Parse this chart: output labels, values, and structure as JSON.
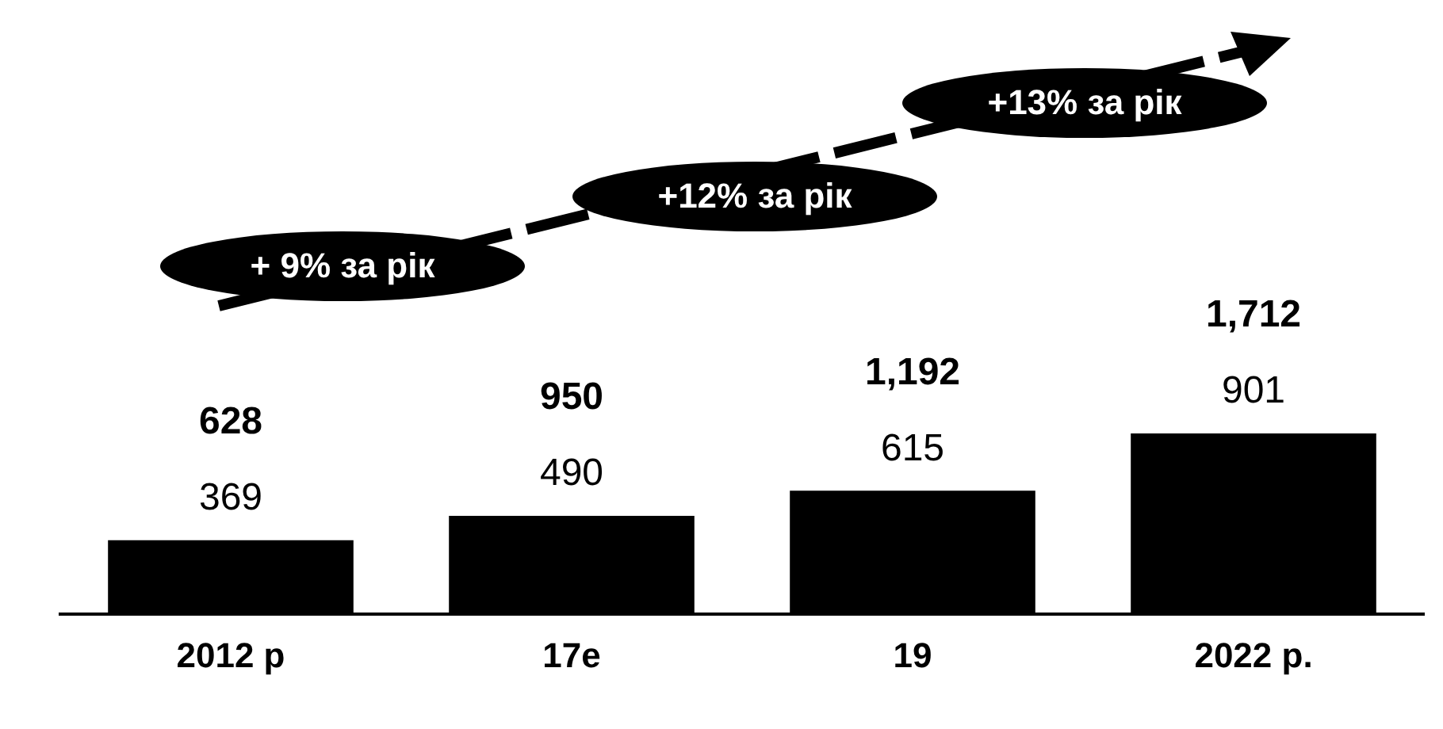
{
  "chart_data": {
    "type": "bar",
    "categories": [
      "2012 р",
      "17e",
      "19",
      "2022 р."
    ],
    "series": [
      {
        "color": "#000000",
        "values": [
          369,
          490,
          615,
          901
        ]
      }
    ],
    "data_labels": true,
    "annotations": [
      "+ 9% за рік",
      "+12% за рік",
      "+13% за рік",
      "628",
      "950",
      "1,192",
      "1,712"
    ],
    "grid": false,
    "legend": false
  }
}
